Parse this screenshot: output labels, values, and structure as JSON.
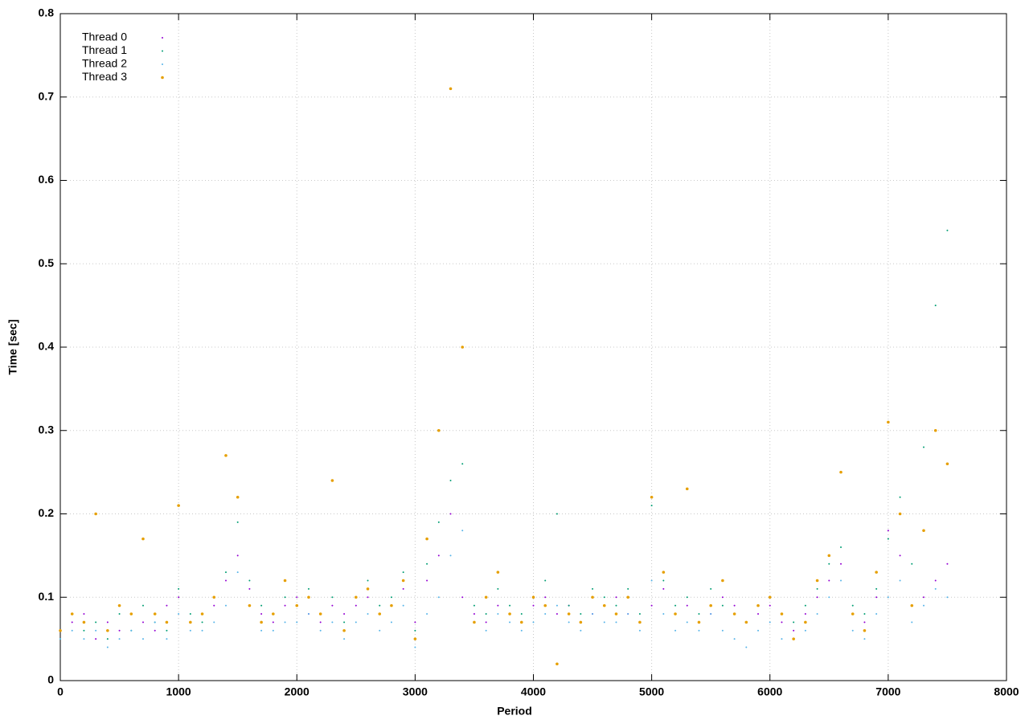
{
  "chart_data": {
    "type": "scatter",
    "xlabel": "Period",
    "ylabel": "Time [sec]",
    "x": [
      0,
      100,
      200,
      300,
      400,
      500,
      600,
      700,
      800,
      900,
      1000,
      1100,
      1200,
      1300,
      1400,
      1500,
      1600,
      1700,
      1800,
      1900,
      2000,
      2100,
      2200,
      2300,
      2400,
      2500,
      2600,
      2700,
      2800,
      2900,
      3000,
      3100,
      3200,
      3300,
      3400,
      3500,
      3600,
      3700,
      3800,
      3900,
      4000,
      4100,
      4200,
      4300,
      4400,
      4500,
      4600,
      4700,
      4800,
      4900,
      5000,
      5100,
      5200,
      5300,
      5400,
      5500,
      5600,
      5700,
      5800,
      5900,
      6000,
      6100,
      6200,
      6300,
      6400,
      6500,
      6600,
      6700,
      6800,
      6900,
      7000,
      7100,
      7200,
      7300,
      7400,
      7500
    ],
    "series": [
      {
        "name": "Thread 0",
        "color": "#9400d3",
        "values": [
          0.06,
          0.07,
          0.08,
          0.05,
          0.07,
          0.06,
          0.08,
          0.07,
          0.06,
          0.09,
          0.1,
          0.07,
          0.08,
          0.09,
          0.12,
          0.15,
          0.11,
          0.08,
          0.07,
          0.09,
          0.1,
          0.08,
          0.07,
          0.09,
          0.08,
          0.09,
          0.1,
          0.08,
          0.09,
          0.11,
          0.07,
          0.12,
          0.15,
          0.2,
          0.1,
          0.08,
          0.07,
          0.09,
          0.08,
          0.07,
          0.09,
          0.1,
          0.08,
          0.09,
          0.07,
          0.08,
          0.09,
          0.1,
          0.08,
          0.07,
          0.09,
          0.11,
          0.08,
          0.09,
          0.07,
          0.08,
          0.1,
          0.09,
          0.07,
          0.08,
          0.09,
          0.07,
          0.06,
          0.08,
          0.1,
          0.12,
          0.14,
          0.08,
          0.07,
          0.1,
          0.18,
          0.15,
          0.09,
          0.1,
          0.12,
          0.14
        ]
      },
      {
        "name": "Thread 1",
        "color": "#009e73",
        "values": [
          0.05,
          0.08,
          0.06,
          0.07,
          0.05,
          0.08,
          0.06,
          0.09,
          0.07,
          0.06,
          0.11,
          0.08,
          0.07,
          0.1,
          0.13,
          0.19,
          0.12,
          0.09,
          0.08,
          0.1,
          0.09,
          0.11,
          0.08,
          0.1,
          0.07,
          0.1,
          0.12,
          0.09,
          0.1,
          0.13,
          0.06,
          0.14,
          0.19,
          0.24,
          0.26,
          0.09,
          0.08,
          0.11,
          0.09,
          0.08,
          0.1,
          0.12,
          0.2,
          0.09,
          0.08,
          0.11,
          0.1,
          0.09,
          0.11,
          0.08,
          0.21,
          0.12,
          0.09,
          0.1,
          0.08,
          0.11,
          0.09,
          0.08,
          0.07,
          0.09,
          0.1,
          0.08,
          0.07,
          0.09,
          0.11,
          0.14,
          0.16,
          0.09,
          0.08,
          0.11,
          0.17,
          0.22,
          0.14,
          0.28,
          0.45,
          0.54
        ]
      },
      {
        "name": "Thread 2",
        "color": "#56b4e9",
        "values": [
          0.05,
          0.06,
          0.05,
          0.06,
          0.04,
          0.05,
          0.06,
          0.05,
          0.07,
          0.05,
          0.08,
          0.06,
          0.06,
          0.07,
          0.09,
          0.13,
          0.09,
          0.06,
          0.06,
          0.07,
          0.07,
          0.08,
          0.06,
          0.07,
          0.05,
          0.07,
          0.08,
          0.06,
          0.07,
          0.09,
          0.04,
          0.08,
          0.1,
          0.15,
          0.18,
          0.07,
          0.06,
          0.08,
          0.07,
          0.06,
          0.07,
          0.08,
          0.09,
          0.07,
          0.06,
          0.08,
          0.07,
          0.07,
          0.08,
          0.06,
          0.12,
          0.08,
          0.06,
          0.07,
          0.06,
          0.08,
          0.06,
          0.05,
          0.04,
          0.06,
          0.07,
          0.05,
          0.05,
          0.06,
          0.08,
          0.1,
          0.12,
          0.06,
          0.05,
          0.08,
          0.1,
          0.12,
          0.07,
          0.09,
          0.11,
          0.1
        ]
      },
      {
        "name": "Thread 3",
        "color": "#e69f00",
        "values": [
          0.06,
          0.08,
          0.07,
          0.2,
          0.06,
          0.09,
          0.08,
          0.17,
          0.08,
          0.07,
          0.21,
          0.07,
          0.08,
          0.1,
          0.27,
          0.22,
          0.09,
          0.07,
          0.08,
          0.12,
          0.09,
          0.1,
          0.08,
          0.24,
          0.06,
          0.1,
          0.11,
          0.08,
          0.09,
          0.12,
          0.05,
          0.17,
          0.3,
          0.71,
          0.4,
          0.07,
          0.1,
          0.13,
          0.08,
          0.07,
          0.1,
          0.09,
          0.02,
          0.08,
          0.07,
          0.1,
          0.09,
          0.08,
          0.1,
          0.07,
          0.22,
          0.13,
          0.08,
          0.23,
          0.07,
          0.09,
          0.12,
          0.08,
          0.07,
          0.09,
          0.1,
          0.08,
          0.05,
          0.07,
          0.12,
          0.15,
          0.25,
          0.08,
          0.06,
          0.13,
          0.31,
          0.2,
          0.09,
          0.18,
          0.3,
          0.26
        ]
      }
    ],
    "xlim": [
      0,
      8000
    ],
    "xticks": [
      0,
      1000,
      2000,
      3000,
      4000,
      5000,
      6000,
      7000,
      8000
    ],
    "ylim": [
      0,
      0.8
    ],
    "yticks": [
      0,
      0.1,
      0.2,
      0.3,
      0.4,
      0.5,
      0.6,
      0.7,
      0.8
    ],
    "grid": true,
    "legend": "upper-left"
  }
}
